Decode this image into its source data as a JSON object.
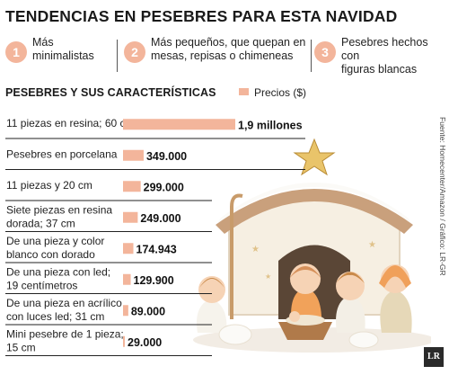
{
  "header": {
    "title": "TENDENCIAS EN PESEBRES PARA ESTA NAVIDAD"
  },
  "trends": [
    {
      "num": "1",
      "lines": [
        "Más",
        "minimalistas"
      ]
    },
    {
      "num": "2",
      "lines": [
        "Más pequeños, que quepan en",
        "mesas, repisas o chimeneas"
      ]
    },
    {
      "num": "3",
      "lines": [
        "Pesebres hechos con",
        "figuras blancas"
      ]
    }
  ],
  "subheader": "PESEBRES Y SUS CARACTERÍSTICAS",
  "legend_label": "Precios ($)",
  "source": "Fuente: Homecenter/Amazon / Gráfico: LR-GR",
  "logo_text": "LR",
  "colors": {
    "bar": "#f3b59b",
    "accent": "#f3b59b",
    "text": "#222222"
  },
  "chart_data": {
    "type": "bar",
    "orientation": "horizontal",
    "series": [
      {
        "name": "Precios ($)",
        "values": [
          1900000,
          349000,
          299000,
          249000,
          174943,
          129900,
          89000,
          29000
        ]
      }
    ],
    "categories": [
      [
        "11 piezas en resina; 60 cm"
      ],
      [
        "Pesebres en porcelana"
      ],
      [
        "11 piezas y 20 cm"
      ],
      [
        "Siete piezas en resina",
        "dorada; 37 cm"
      ],
      [
        "De una pieza y color",
        "blanco con dorado"
      ],
      [
        "De una pieza con led;",
        "19 centímetros"
      ],
      [
        "De una pieza en acrílico",
        "con luces led; 31 cm"
      ],
      [
        "Mini pesebre de 1 pieza;",
        "15 cm"
      ]
    ],
    "value_labels": [
      "1,9 millones",
      "349.000",
      "299.000",
      "249.000",
      "174.943",
      "129.900",
      "89.000",
      "29.000"
    ],
    "legend": "top-right",
    "grid": false
  }
}
